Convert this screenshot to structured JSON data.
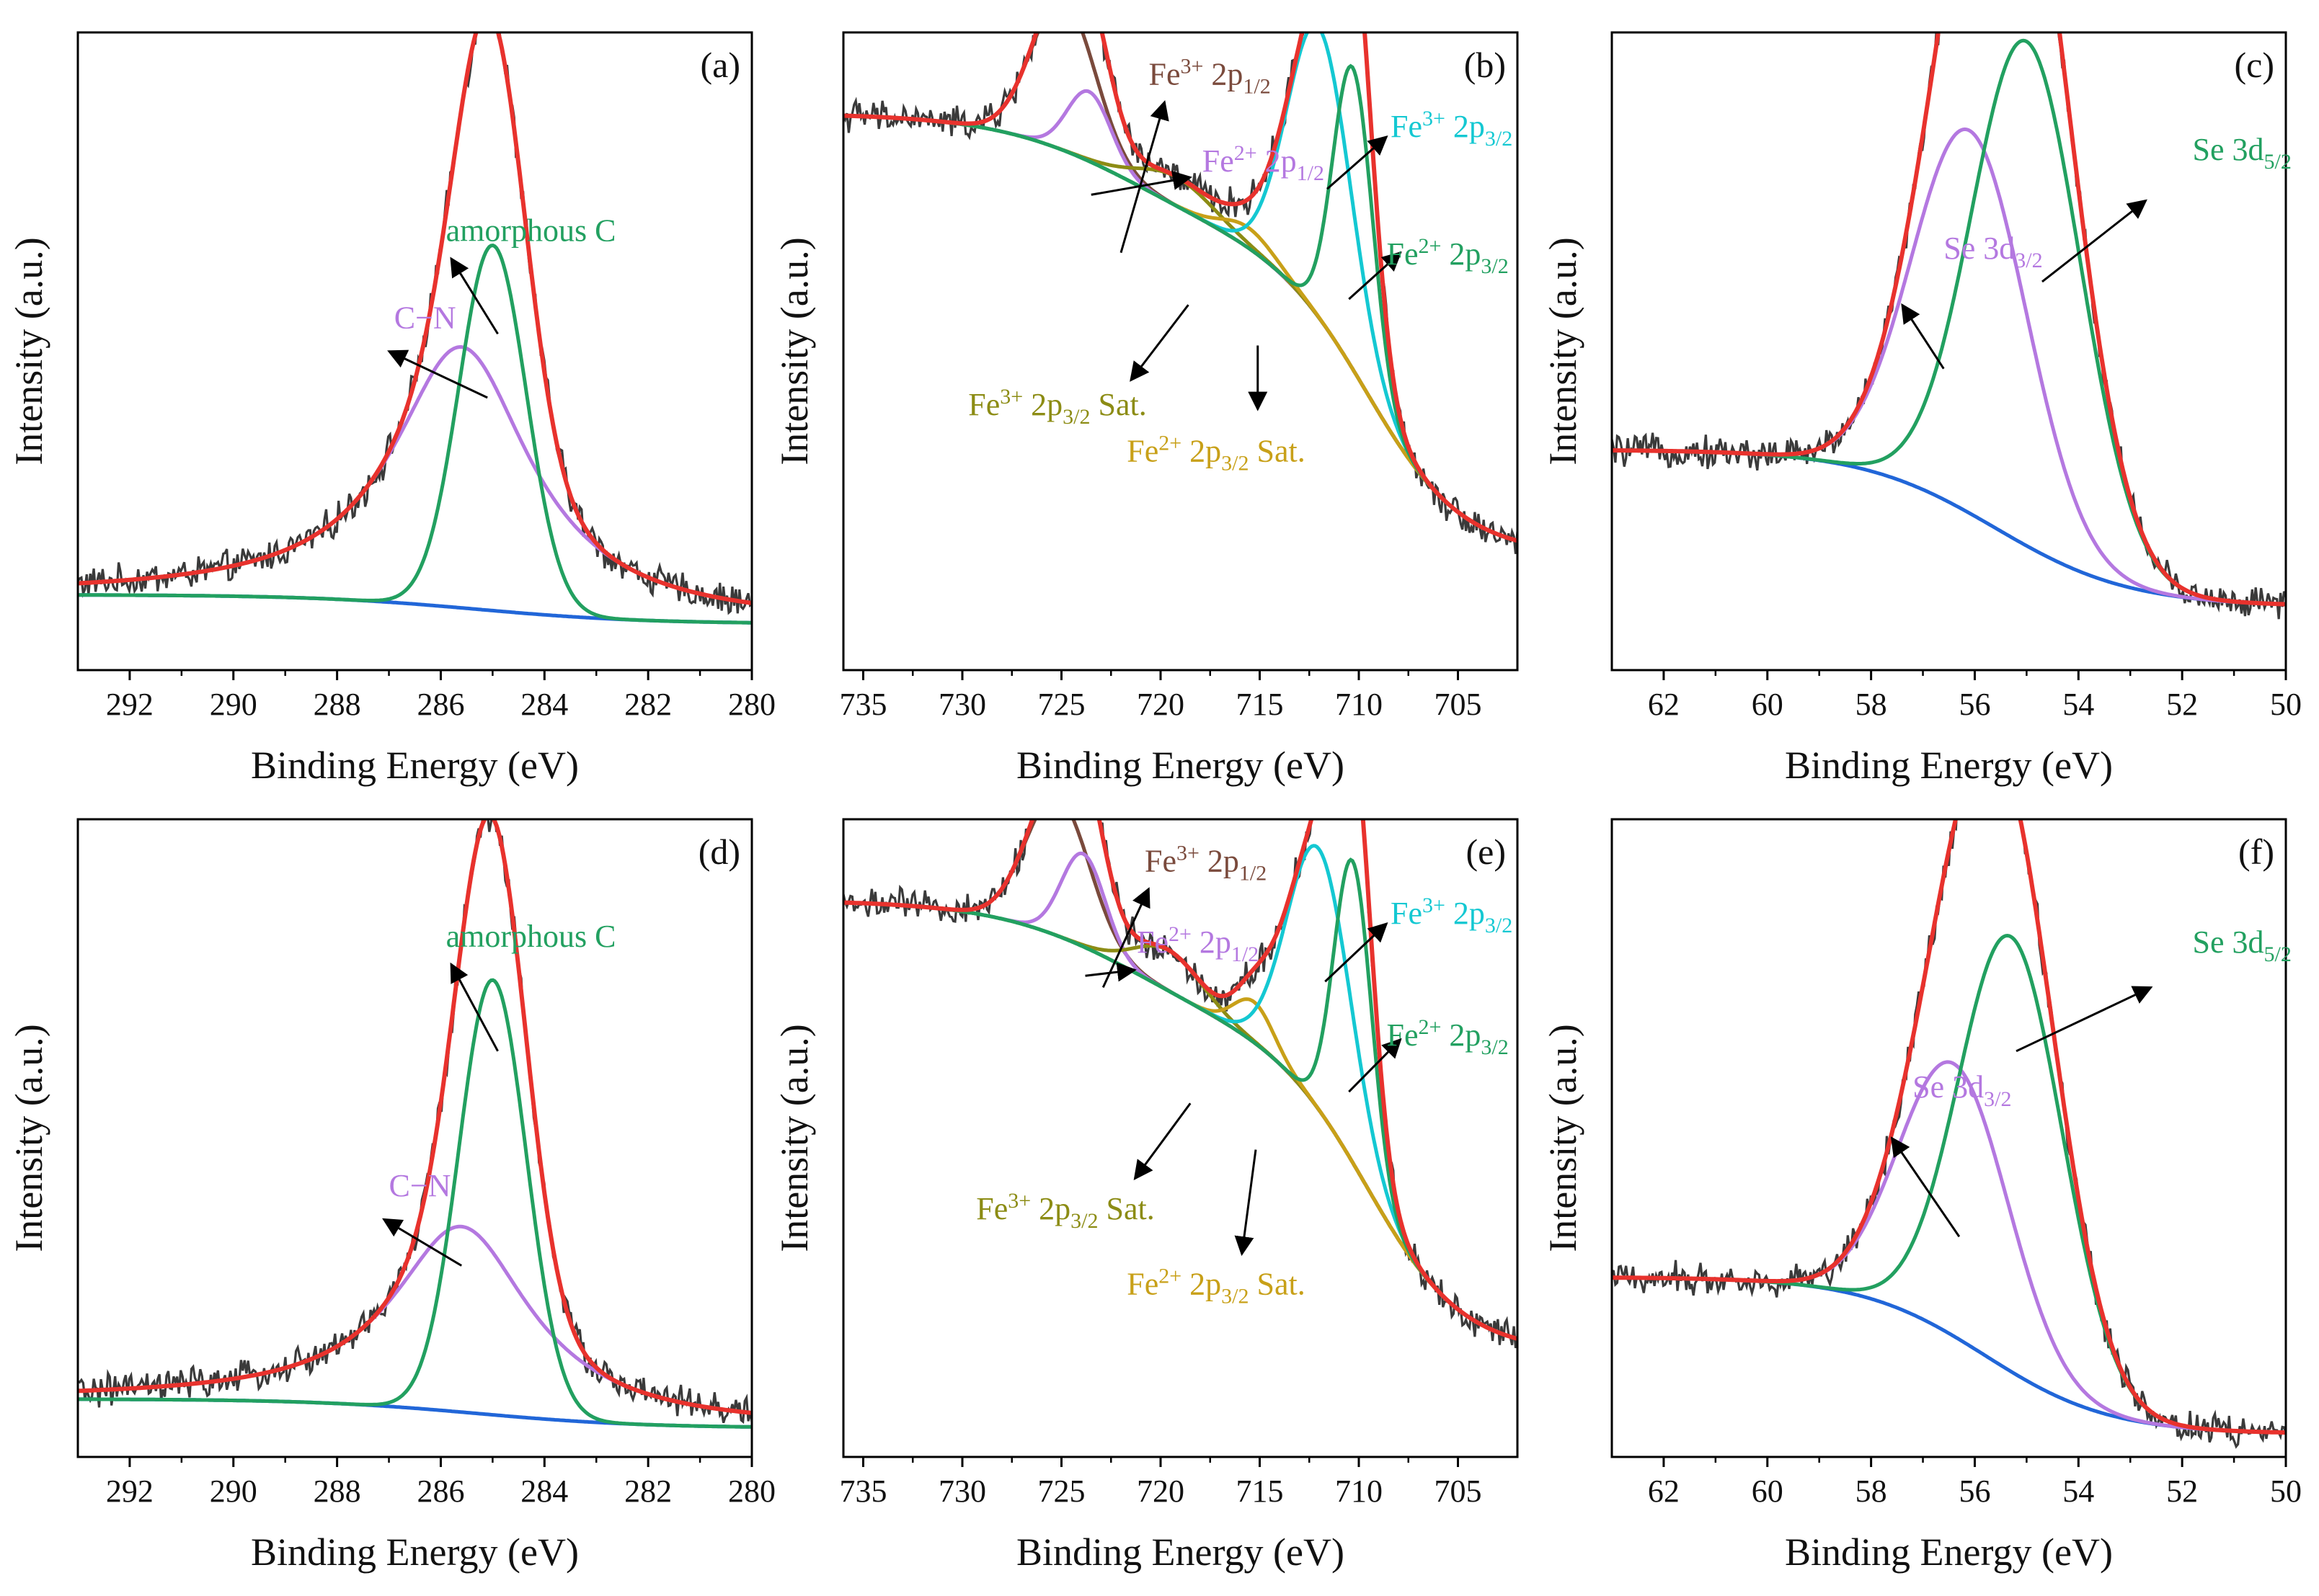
{
  "figure": {
    "panel_order": [
      "(a)",
      "(b)",
      "(c)",
      "(d)",
      "(e)",
      "(f)"
    ]
  },
  "colors": {
    "raw": "#3a3a3a",
    "envelope": "#e8322d",
    "background_blue": "#2166d8",
    "green": "#22a060",
    "violet": "#b478e0",
    "cyan": "#14c8d2",
    "olive": "#8c8c14",
    "brown": "#7a4a3c",
    "gold": "#c8a018"
  },
  "chart_data": [
    {
      "type": "line",
      "panel": "(a)",
      "title": "",
      "xlabel": "Binding Energy (eV)",
      "ylabel": "Intensity (a.u.)",
      "xlim": [
        293,
        280
      ],
      "xticks": [
        292,
        290,
        288,
        286,
        284,
        282,
        280
      ],
      "ylim": [
        0,
        1.1
      ],
      "baseline": {
        "left": 0.13,
        "right": 0.08,
        "center": 285.3,
        "width": 1.6
      },
      "peaks": [
        {
          "name": "C–N",
          "center": 285.6,
          "height": 0.45,
          "width": 1.6,
          "shape": "lorentz",
          "color_key": "violet"
        },
        {
          "name": "amorphous C",
          "center": 285.0,
          "height": 0.63,
          "width": 0.65,
          "shape": "gauss",
          "color_key": "green"
        }
      ],
      "series_order": [
        "raw",
        "background",
        "C–N",
        "amorphous C",
        "envelope"
      ],
      "annotations": [
        {
          "label": "C−N",
          "color_key": "violet",
          "text_at": [
            286.9,
            0.59
          ],
          "arrow": [
            [
              285.1,
              0.47
            ],
            [
              287.0,
              0.55
            ]
          ]
        },
        {
          "label": "amorphous C",
          "color_key": "green",
          "text_at": [
            285.9,
            0.74
          ],
          "arrow": [
            [
              284.9,
              0.58
            ],
            [
              285.8,
              0.71
            ]
          ]
        }
      ]
    },
    {
      "type": "line",
      "panel": "(b)",
      "title": "",
      "xlabel": "Binding Energy (eV)",
      "ylabel": "Intensity (a.u.)",
      "xlim": [
        736,
        702
      ],
      "xticks": [
        735,
        730,
        725,
        720,
        715,
        710,
        705
      ],
      "ylim": [
        0,
        1.1
      ],
      "background": {
        "type": "shirley",
        "left": 0.96,
        "right": 0.2,
        "steps": [
          {
            "center": 721.5,
            "width": 3.5,
            "fraction": 0.3
          },
          {
            "center": 709.5,
            "width": 2.4,
            "fraction": 0.7
          }
        ]
      },
      "peaks": [
        {
          "name": "Fe3+ 2p1/2",
          "center": 724.9,
          "height": 0.26,
          "width": 1.6,
          "color_key": "brown"
        },
        {
          "name": "Fe2+ 2p1/2",
          "center": 723.6,
          "height": 0.12,
          "width": 1.1,
          "color_key": "violet"
        },
        {
          "name": "Fe3+ 2p3/2 Sat.",
          "center": 719.2,
          "height": 0.05,
          "width": 1.9,
          "color_key": "olive"
        },
        {
          "name": "Fe2+ 2p3/2 Sat.",
          "center": 715.6,
          "height": 0.035,
          "width": 1.3,
          "color_key": "gold"
        },
        {
          "name": "Fe3+ 2p3/2",
          "center": 712.0,
          "height": 0.5,
          "width": 1.6,
          "color_key": "cyan"
        },
        {
          "name": "Fe2+ 2p3/2",
          "center": 710.3,
          "height": 0.52,
          "width": 1.0,
          "color_key": "green"
        }
      ],
      "annotations": [
        {
          "label": "Fe3+ 2p1/2",
          "color_key": "brown",
          "text_at": [
            720.6,
            1.01
          ],
          "arrow": [
            [
              722.0,
              0.72
            ],
            [
              719.8,
              0.98
            ]
          ]
        },
        {
          "label": "Fe2+ 2p1/2",
          "color_key": "violet",
          "text_at": [
            717.9,
            0.86
          ],
          "arrow": [
            [
              723.5,
              0.82
            ],
            [
              718.5,
              0.85
            ]
          ]
        },
        {
          "label": "Fe3+ 2p3/2",
          "color_key": "cyan",
          "text_at": [
            708.4,
            0.92
          ],
          "arrow": [
            [
              711.6,
              0.83
            ],
            [
              708.6,
              0.92
            ]
          ]
        },
        {
          "label": "Fe2+ 2p3/2",
          "color_key": "green",
          "text_at": [
            708.6,
            0.7
          ],
          "arrow": [
            [
              710.5,
              0.64
            ],
            [
              707.9,
              0.72
            ]
          ]
        },
        {
          "label": "Fe3+ 2p3/2 Sat.",
          "color_key": "olive",
          "text_at": [
            729.7,
            0.44
          ],
          "arrow": [
            [
              718.6,
              0.63
            ],
            [
              721.5,
              0.5
            ]
          ]
        },
        {
          "label": "Fe2+ 2p3/2 Sat.",
          "color_key": "gold",
          "text_at": [
            721.7,
            0.36
          ],
          "arrow": [
            [
              715.1,
              0.56
            ],
            [
              715.1,
              0.45
            ]
          ]
        }
      ]
    },
    {
      "type": "line",
      "panel": "(c)",
      "title": "",
      "xlabel": "Binding Energy (eV)",
      "ylabel": "Intensity (a.u.)",
      "xlim": [
        63,
        50
      ],
      "xticks": [
        62,
        60,
        58,
        56,
        54,
        52,
        50
      ],
      "ylim": [
        0,
        1.1
      ],
      "background": {
        "type": "step",
        "left": 0.38,
        "right": 0.11,
        "center": 55.6,
        "width": 1.3
      },
      "peaks": [
        {
          "name": "Se 3d3/2",
          "center": 56.1,
          "height": 0.66,
          "width": 1.1,
          "color_key": "violet"
        },
        {
          "name": "Se 3d5/2",
          "center": 55.0,
          "height": 0.87,
          "width": 1.05,
          "color_key": "green"
        }
      ],
      "annotations": [
        {
          "label": "Se 3d5/2",
          "color_key": "green",
          "text_at": [
            51.8,
            0.88
          ],
          "arrow": [
            [
              54.7,
              0.67
            ],
            [
              52.7,
              0.81
            ]
          ]
        },
        {
          "label": "Se 3d3/2",
          "color_key": "violet",
          "text_at": [
            56.6,
            0.71
          ],
          "arrow": [
            [
              56.6,
              0.52
            ],
            [
              57.4,
              0.63
            ]
          ]
        }
      ]
    },
    {
      "type": "line",
      "panel": "(d)",
      "title": "",
      "xlabel": "Binding Energy (eV)",
      "ylabel": "Intensity (a.u.)",
      "xlim": [
        293,
        280
      ],
      "xticks": [
        292,
        290,
        288,
        286,
        284,
        282,
        280
      ],
      "ylim": [
        0,
        1.1
      ],
      "baseline": {
        "left": 0.1,
        "right": 0.05,
        "center": 285.3,
        "width": 1.6
      },
      "peaks": [
        {
          "name": "C–N",
          "center": 285.6,
          "height": 0.32,
          "width": 1.6,
          "shape": "lorentz",
          "color_key": "violet"
        },
        {
          "name": "amorphous C",
          "center": 285.0,
          "height": 0.75,
          "width": 0.65,
          "shape": "gauss",
          "color_key": "green"
        }
      ],
      "annotations": [
        {
          "label": "C−N",
          "color_key": "violet",
          "text_at": [
            287.0,
            0.45
          ],
          "arrow": [
            [
              285.6,
              0.33
            ],
            [
              287.1,
              0.41
            ]
          ]
        },
        {
          "label": "amorphous C",
          "color_key": "green",
          "text_at": [
            285.9,
            0.88
          ],
          "arrow": [
            [
              284.9,
              0.7
            ],
            [
              285.8,
              0.85
            ]
          ]
        }
      ]
    },
    {
      "type": "line",
      "panel": "(e)",
      "title": "",
      "xlabel": "Binding Energy (eV)",
      "ylabel": "Intensity (a.u.)",
      "xlim": [
        736,
        702
      ],
      "xticks": [
        735,
        730,
        725,
        720,
        715,
        710,
        705
      ],
      "ylim": [
        0,
        1.1
      ],
      "background": {
        "type": "shirley",
        "left": 0.96,
        "right": 0.18,
        "steps": [
          {
            "center": 721.5,
            "width": 3.5,
            "fraction": 0.3
          },
          {
            "center": 709.5,
            "width": 2.4,
            "fraction": 0.7
          }
        ]
      },
      "peaks": [
        {
          "name": "Fe3+ 2p1/2",
          "center": 725.2,
          "height": 0.24,
          "width": 1.6,
          "color_key": "brown"
        },
        {
          "name": "Fe2+ 2p1/2",
          "center": 723.9,
          "height": 0.16,
          "width": 1.1,
          "color_key": "violet"
        },
        {
          "name": "Fe3+ 2p3/2 Sat.",
          "center": 719.6,
          "height": 0.07,
          "width": 1.7,
          "color_key": "olive"
        },
        {
          "name": "Fe2+ 2p3/2 Sat.",
          "center": 715.3,
          "height": 0.07,
          "width": 1.0,
          "color_key": "gold"
        },
        {
          "name": "Fe3+ 2p3/2",
          "center": 712.0,
          "height": 0.45,
          "width": 1.6,
          "color_key": "cyan"
        },
        {
          "name": "Fe2+ 2p3/2",
          "center": 710.3,
          "height": 0.52,
          "width": 0.95,
          "color_key": "green"
        }
      ],
      "annotations": [
        {
          "label": "Fe3+ 2p1/2",
          "color_key": "brown",
          "text_at": [
            720.8,
            1.01
          ],
          "arrow": [
            [
              722.9,
              0.81
            ],
            [
              720.6,
              0.98
            ]
          ]
        },
        {
          "label": "Fe2+ 2p1/2",
          "color_key": "violet",
          "text_at": [
            721.2,
            0.87
          ],
          "arrow": [
            [
              723.8,
              0.83
            ],
            [
              721.3,
              0.84
            ]
          ]
        },
        {
          "label": "Fe3+ 2p3/2",
          "color_key": "cyan",
          "text_at": [
            708.4,
            0.92
          ],
          "arrow": [
            [
              711.7,
              0.82
            ],
            [
              708.6,
              0.92
            ]
          ]
        },
        {
          "label": "Fe2+ 2p3/2",
          "color_key": "green",
          "text_at": [
            708.6,
            0.71
          ],
          "arrow": [
            [
              710.5,
              0.63
            ],
            [
              707.9,
              0.72
            ]
          ]
        },
        {
          "label": "Fe3+ 2p3/2 Sat.",
          "color_key": "olive",
          "text_at": [
            729.3,
            0.41
          ],
          "arrow": [
            [
              718.5,
              0.61
            ],
            [
              721.3,
              0.48
            ]
          ]
        },
        {
          "label": "Fe2+ 2p3/2 Sat.",
          "color_key": "gold",
          "text_at": [
            721.7,
            0.28
          ],
          "arrow": [
            [
              715.2,
              0.53
            ],
            [
              715.9,
              0.35
            ]
          ]
        }
      ]
    },
    {
      "type": "line",
      "panel": "(f)",
      "title": "",
      "xlabel": "Binding Energy (eV)",
      "ylabel": "Intensity (a.u.)",
      "xlim": [
        63,
        50
      ],
      "xticks": [
        62,
        60,
        58,
        56,
        54,
        52,
        50
      ],
      "ylim": [
        0,
        1.1
      ],
      "background": {
        "type": "step",
        "left": 0.31,
        "right": 0.04,
        "center": 55.8,
        "width": 1.2
      },
      "peaks": [
        {
          "name": "Se 3d3/2",
          "center": 56.4,
          "height": 0.47,
          "width": 1.05,
          "color_key": "violet"
        },
        {
          "name": "Se 3d5/2",
          "center": 55.3,
          "height": 0.75,
          "width": 1.0,
          "color_key": "green"
        }
      ],
      "annotations": [
        {
          "label": "Se 3d5/2",
          "color_key": "green",
          "text_at": [
            51.8,
            0.87
          ],
          "arrow": [
            [
              55.2,
              0.7
            ],
            [
              52.6,
              0.81
            ]
          ]
        },
        {
          "label": "Se 3d3/2",
          "color_key": "violet",
          "text_at": [
            57.2,
            0.62
          ],
          "arrow": [
            [
              56.3,
              0.38
            ],
            [
              57.6,
              0.55
            ]
          ]
        }
      ]
    }
  ]
}
